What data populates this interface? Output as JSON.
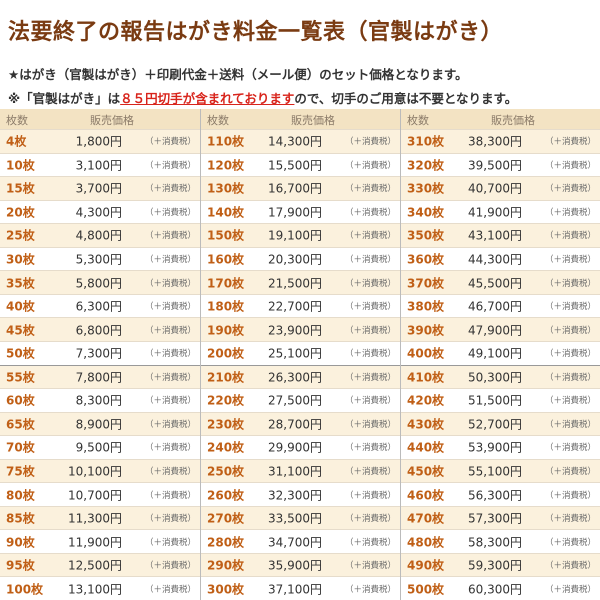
{
  "header": {
    "title": "法要終了の報告はがき料金一覧表（官製はがき）"
  },
  "notes": {
    "line1": "★はがき（官製はがき）＋印刷代金＋送料（メール便）のセット価格となります。",
    "line2": {
      "before": "※「官製はがき」は",
      "highlight": "８５円切手が含まれております",
      "after": "ので、切手のご用意は不要となります。"
    }
  },
  "table": {
    "qty_header": "枚数",
    "price_header": "販売価格",
    "tax_note": "（＋消費税）",
    "columns": [
      [
        [
          "4枚",
          "1,800円"
        ],
        [
          "10枚",
          "3,100円"
        ],
        [
          "15枚",
          "3,700円"
        ],
        [
          "20枚",
          "4,300円"
        ],
        [
          "25枚",
          "4,800円"
        ],
        [
          "30枚",
          "5,300円"
        ],
        [
          "35枚",
          "5,800円"
        ],
        [
          "40枚",
          "6,300円"
        ],
        [
          "45枚",
          "6,800円"
        ],
        [
          "50枚",
          "7,300円"
        ],
        [
          "55枚",
          "7,800円"
        ],
        [
          "60枚",
          "8,300円"
        ],
        [
          "65枚",
          "8,900円"
        ],
        [
          "70枚",
          "9,500円"
        ],
        [
          "75枚",
          "10,100円"
        ],
        [
          "80枚",
          "10,700円"
        ],
        [
          "85枚",
          "11,300円"
        ],
        [
          "90枚",
          "11,900円"
        ],
        [
          "95枚",
          "12,500円"
        ],
        [
          "100枚",
          "13,100円"
        ]
      ],
      [
        [
          "110枚",
          "14,300円"
        ],
        [
          "120枚",
          "15,500円"
        ],
        [
          "130枚",
          "16,700円"
        ],
        [
          "140枚",
          "17,900円"
        ],
        [
          "150枚",
          "19,100円"
        ],
        [
          "160枚",
          "20,300円"
        ],
        [
          "170枚",
          "21,500円"
        ],
        [
          "180枚",
          "22,700円"
        ],
        [
          "190枚",
          "23,900円"
        ],
        [
          "200枚",
          "25,100円"
        ],
        [
          "210枚",
          "26,300円"
        ],
        [
          "220枚",
          "27,500円"
        ],
        [
          "230枚",
          "28,700円"
        ],
        [
          "240枚",
          "29,900円"
        ],
        [
          "250枚",
          "31,100円"
        ],
        [
          "260枚",
          "32,300円"
        ],
        [
          "270枚",
          "33,500円"
        ],
        [
          "280枚",
          "34,700円"
        ],
        [
          "290枚",
          "35,900円"
        ],
        [
          "300枚",
          "37,100円"
        ]
      ],
      [
        [
          "310枚",
          "38,300円"
        ],
        [
          "320枚",
          "39,500円"
        ],
        [
          "330枚",
          "40,700円"
        ],
        [
          "340枚",
          "41,900円"
        ],
        [
          "350枚",
          "43,100円"
        ],
        [
          "360枚",
          "44,300円"
        ],
        [
          "370枚",
          "45,500円"
        ],
        [
          "380枚",
          "46,700円"
        ],
        [
          "390枚",
          "47,900円"
        ],
        [
          "400枚",
          "49,100円"
        ],
        [
          "410枚",
          "50,300円"
        ],
        [
          "420枚",
          "51,500円"
        ],
        [
          "430枚",
          "52,700円"
        ],
        [
          "440枚",
          "53,900円"
        ],
        [
          "450枚",
          "55,100円"
        ],
        [
          "460枚",
          "56,300円"
        ],
        [
          "470枚",
          "57,300円"
        ],
        [
          "480枚",
          "58,300円"
        ],
        [
          "490枚",
          "59,300円"
        ],
        [
          "500枚",
          "60,300円"
        ]
      ]
    ]
  }
}
